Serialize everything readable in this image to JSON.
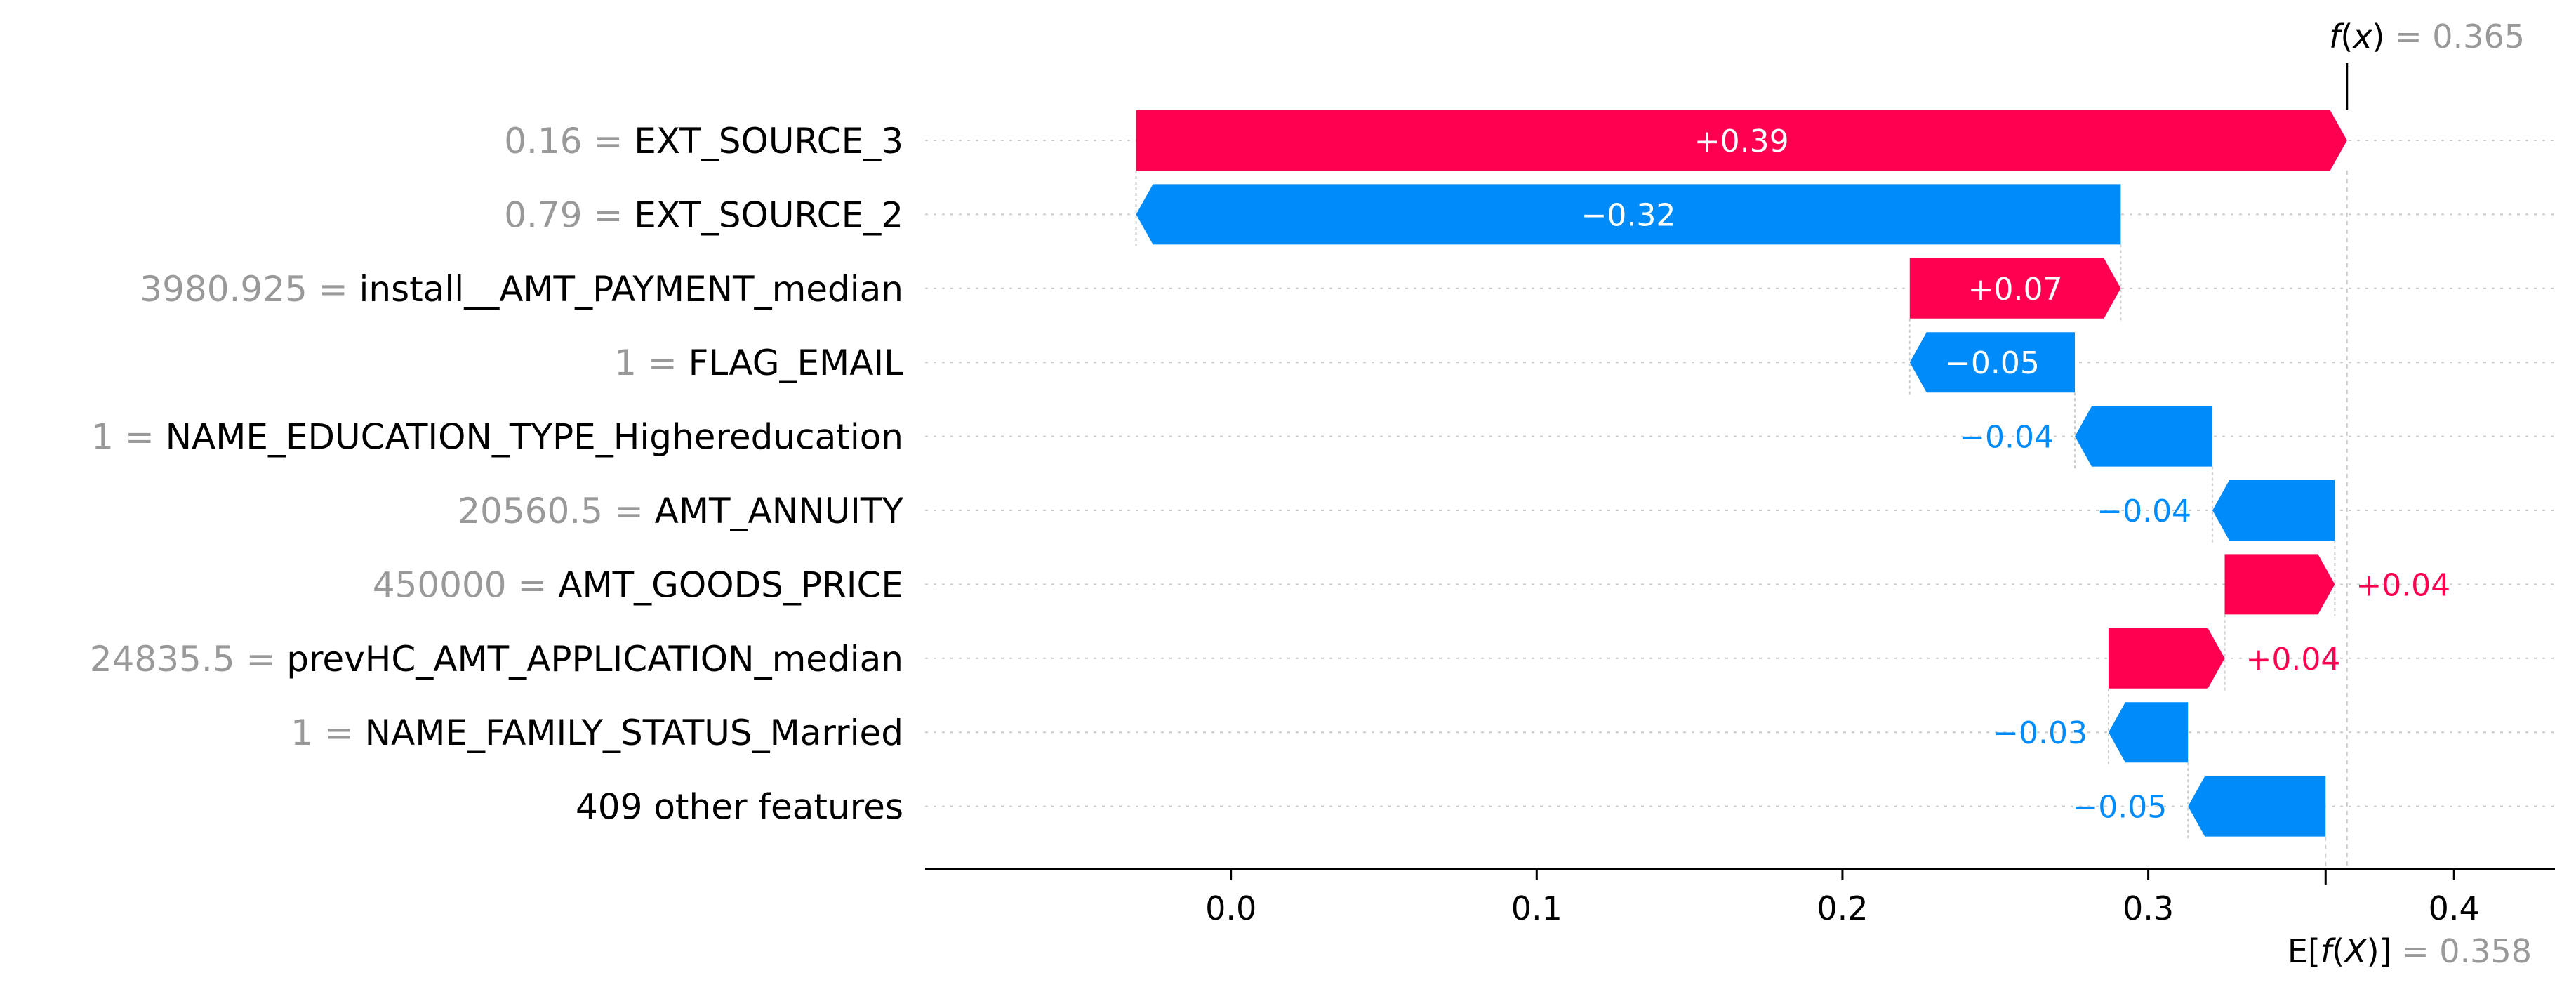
{
  "chart_data": {
    "type": "waterfall",
    "base_value": 0.358,
    "output_value": 0.365,
    "base_label": {
      "prefix": "E[",
      "func": "f",
      "open": "(",
      "var": "X",
      "close": ")]",
      "eq": " = ",
      "value": "0.358"
    },
    "output_label": {
      "func": "f",
      "open": "(",
      "var": "x",
      "close": ")",
      "eq": " = ",
      "value": "0.365"
    },
    "xlim": [
      -0.1,
      0.433
    ],
    "xticks": [
      0.0,
      0.1,
      0.2,
      0.3,
      0.4
    ],
    "xtick_labels": [
      "0.0",
      "0.1",
      "0.2",
      "0.3",
      "0.4"
    ],
    "colors": {
      "positive": "#ff0051",
      "negative": "#008bfb",
      "gray": "#999999",
      "grid": "#cccccc"
    },
    "features": [
      {
        "value_text": "0.16",
        "eq": " = ",
        "name": "EXT_SOURCE_3",
        "contribution": 0.39,
        "label": "+0.39",
        "start": -0.031,
        "end": 0.365
      },
      {
        "value_text": "0.79",
        "eq": " = ",
        "name": "EXT_SOURCE_2",
        "contribution": -0.32,
        "label": "−0.32",
        "start": 0.291,
        "end": -0.031
      },
      {
        "value_text": "3980.925",
        "eq": " = ",
        "name": "install__AMT_PAYMENT_median",
        "contribution": 0.07,
        "label": "+0.07",
        "start": 0.222,
        "end": 0.291
      },
      {
        "value_text": "1",
        "eq": " = ",
        "name": "FLAG_EMAIL",
        "contribution": -0.05,
        "label": "−0.05",
        "start": 0.276,
        "end": 0.222
      },
      {
        "value_text": "1",
        "eq": " = ",
        "name": "NAME_EDUCATION_TYPE_Highereducation",
        "contribution": -0.04,
        "label": "−0.04",
        "start": 0.321,
        "end": 0.276
      },
      {
        "value_text": "20560.5",
        "eq": " = ",
        "name": "AMT_ANNUITY",
        "contribution": -0.04,
        "label": "−0.04",
        "start": 0.361,
        "end": 0.321
      },
      {
        "value_text": "450000",
        "eq": " = ",
        "name": "AMT_GOODS_PRICE",
        "contribution": 0.04,
        "label": "+0.04",
        "start": 0.325,
        "end": 0.361
      },
      {
        "value_text": "24835.5",
        "eq": " = ",
        "name": "prevHC_AMT_APPLICATION_median",
        "contribution": 0.04,
        "label": "+0.04",
        "start": 0.287,
        "end": 0.325
      },
      {
        "value_text": "1",
        "eq": " = ",
        "name": "NAME_FAMILY_STATUS_Married",
        "contribution": -0.03,
        "label": "−0.03",
        "start": 0.313,
        "end": 0.287
      },
      {
        "value_text": "",
        "eq": "",
        "name": "409 other features",
        "contribution": -0.05,
        "label": "−0.05",
        "start": 0.358,
        "end": 0.313
      }
    ]
  }
}
